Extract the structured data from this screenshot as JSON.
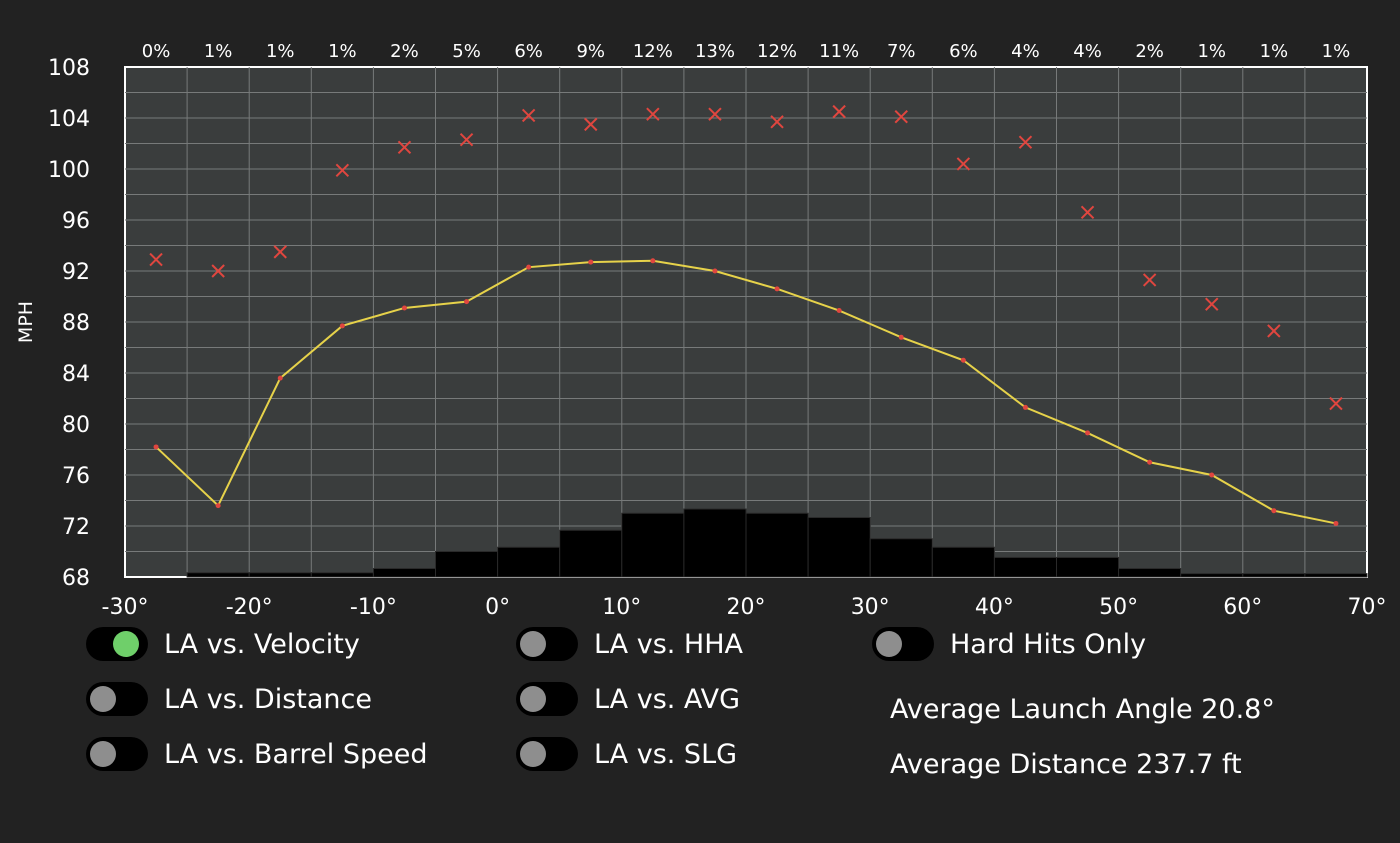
{
  "chart_data": {
    "type": "line",
    "ylabel": "MPH",
    "ylim": [
      68,
      108
    ],
    "yticks": [
      "108",
      "104",
      "100",
      "96",
      "92",
      "88",
      "84",
      "80",
      "76",
      "72",
      "68"
    ],
    "xlim": [
      -30,
      70
    ],
    "xticks": [
      "-30°",
      "-20°",
      "-10°",
      "0°",
      "10°",
      "20°",
      "30°",
      "40°",
      "50°",
      "60°",
      "70°"
    ],
    "bin_centers": [
      -27.5,
      -22.5,
      -17.5,
      -12.5,
      -7.5,
      -2.5,
      2.5,
      7.5,
      12.5,
      17.5,
      22.5,
      27.5,
      32.5,
      37.5,
      42.5,
      47.5,
      52.5,
      57.5,
      62.5,
      67.5
    ],
    "percent_labels": [
      "0%",
      "1%",
      "1%",
      "1%",
      "2%",
      "5%",
      "6%",
      "9%",
      "12%",
      "13%",
      "12%",
      "11%",
      "7%",
      "6%",
      "4%",
      "4%",
      "2%",
      "1%",
      "1%",
      "1%"
    ],
    "histogram_share_percent": [
      0,
      0.5,
      0.5,
      0.5,
      1,
      3,
      3.5,
      5.5,
      7.5,
      8,
      7.5,
      7,
      4.5,
      3.5,
      2.3,
      2.3,
      1,
      0.4,
      0.4,
      0.4
    ],
    "series": [
      {
        "values": [
          78.2,
          73.6,
          83.6,
          87.7,
          89.1,
          89.6,
          92.3,
          92.7,
          92.8,
          92.0,
          90.6,
          88.9,
          86.8,
          85.0,
          81.3,
          79.3,
          77.0,
          76.0,
          73.2,
          72.2
        ],
        "color": "#e6d24a"
      },
      {
        "values": [
          92.9,
          92.0,
          93.5,
          99.9,
          101.7,
          102.3,
          104.2,
          103.5,
          104.3,
          104.3,
          103.7,
          104.5,
          104.1,
          100.4,
          102.1,
          96.6,
          91.3,
          89.4,
          87.3,
          81.6
        ],
        "color": "#e0463f",
        "marker": "x"
      }
    ],
    "grid": true
  },
  "toggles": [
    {
      "label": "LA vs. Velocity",
      "on": true
    },
    {
      "label": "LA vs. Distance",
      "on": false
    },
    {
      "label": "LA vs. Barrel Speed",
      "on": false
    },
    {
      "label": "LA vs. HHA",
      "on": false
    },
    {
      "label": "LA vs. AVG",
      "on": false
    },
    {
      "label": "LA vs. SLG",
      "on": false
    },
    {
      "label": "Hard Hits Only",
      "on": false
    }
  ],
  "stats": {
    "avg_launch_angle": "Average Launch Angle 20.8°",
    "avg_distance": "Average Distance 237.7 ft"
  }
}
